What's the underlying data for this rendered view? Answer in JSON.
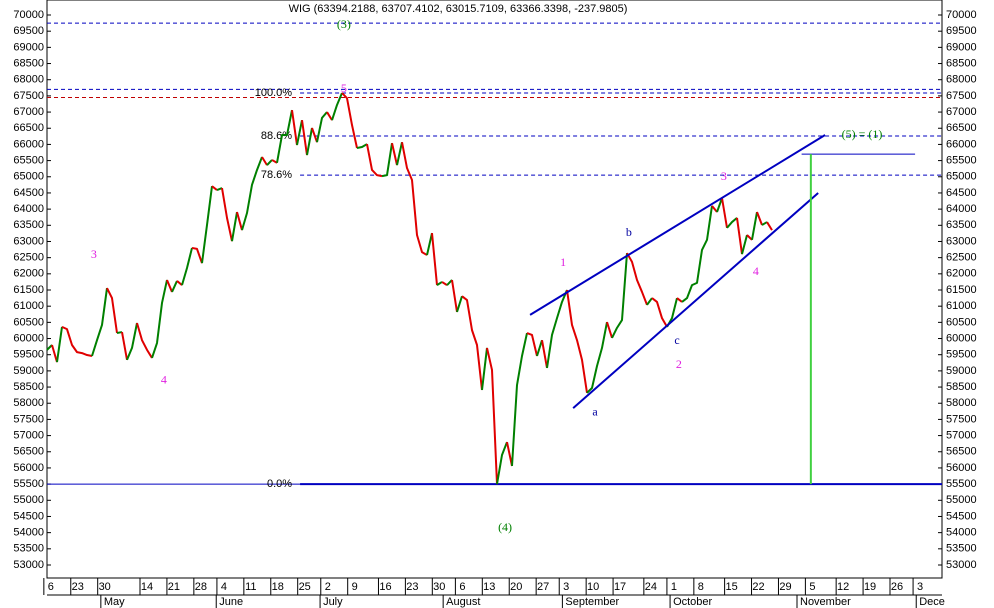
{
  "chart_data": {
    "type": "line",
    "title": "WIG (63394.2188, 63707.4102, 63015.7109, 63366.3398, -237.9805)",
    "x": [
      17,
      18.3,
      19.6,
      20.9,
      22.2,
      23.5,
      24.8,
      26.1,
      27.4,
      28.7,
      30,
      31.3,
      32.6,
      33.9,
      35.2,
      36.5,
      37.8,
      39.1,
      40.4,
      41.7,
      43,
      44.3,
      45.6,
      46.9,
      48.2,
      49.5,
      50.8,
      52.1,
      53.4,
      54.7,
      56,
      57.3,
      58.6,
      59.9,
      61.2,
      62.5,
      63.8,
      65.1,
      66.4,
      67.7,
      69,
      70.3,
      71.6,
      72.9,
      74.2,
      75.5,
      76.8,
      78.1,
      79.4,
      80.7,
      82,
      83.3,
      84.6,
      85.9,
      87.2,
      88.5,
      89.8,
      91.1,
      92.4,
      93.7,
      95,
      96.3,
      97.6,
      98.9,
      100.2,
      101.5,
      102.8,
      104.1,
      105.4,
      106.7,
      108,
      109.3,
      110.6,
      111.9,
      113.2,
      114.5,
      115.8,
      117.1,
      118.4,
      119.7,
      121,
      122.3,
      123.6,
      124.9,
      126.2,
      127.5,
      128.8,
      130.1,
      131.4,
      132.7,
      134,
      135.3,
      136.6,
      137.9,
      139.2,
      140.5,
      141.8,
      143.1,
      144.4,
      145.7,
      147,
      148.3,
      149.6,
      150.9,
      152.2,
      153.5,
      154.8,
      156.1,
      157.4,
      158.7,
      160,
      161.3,
      162.6,
      163.9,
      165.2,
      166.5,
      167.8,
      169.1,
      170.4,
      171.7,
      173,
      174.3,
      175.6,
      176.9,
      178.2,
      179.5,
      180.8,
      182.1,
      183.4,
      184.7,
      186,
      187.3,
      188.6,
      189.9,
      191.2,
      192.5,
      193.8,
      195.1,
      196.4,
      197.7,
      199,
      200.3,
      201.6,
      202.9,
      204.2,
      205.5
    ],
    "series": [
      {
        "up_color": "#008000",
        "down_color": "#e00000",
        "values": [
          59650,
          59800,
          59270,
          60360,
          60290,
          59800,
          59580,
          59550,
          59490,
          59460,
          59950,
          60420,
          61560,
          61250,
          60170,
          60200,
          59340,
          59710,
          60480,
          59950,
          59650,
          59400,
          59860,
          61100,
          61810,
          61440,
          61780,
          61650,
          62180,
          62800,
          62770,
          62330,
          63510,
          64710,
          64590,
          64650,
          63730,
          63010,
          63910,
          63350,
          63880,
          64750,
          65210,
          65610,
          65360,
          65520,
          65430,
          66290,
          66290,
          67060,
          65980,
          66750,
          65670,
          66510,
          66070,
          66820,
          67000,
          66750,
          67220,
          67590,
          67430,
          66600,
          65890,
          65920,
          66010,
          65210,
          65050,
          65020,
          65050,
          66040,
          65360,
          66070,
          65270,
          64900,
          63200,
          62670,
          62580,
          63260,
          61650,
          61750,
          61650,
          61810,
          60820,
          61310,
          61190,
          60260,
          59800,
          58410,
          59710,
          59030,
          55500,
          56400,
          56800,
          56060,
          58560,
          59460,
          60170,
          60110,
          59460,
          59950,
          59090,
          60110,
          60630,
          61130,
          61500,
          60420,
          59950,
          59340,
          58320,
          58470,
          59150,
          59710,
          60510,
          60020,
          60330,
          60570,
          62640,
          62370,
          61810,
          61440,
          61040,
          61250,
          61130,
          60630,
          60360,
          60630,
          61250,
          61130,
          61250,
          61650,
          61720,
          62740,
          63050,
          64100,
          63910,
          64340,
          63420,
          63600,
          63730,
          62610,
          63200,
          63050,
          63910,
          63510,
          63600,
          63350
        ]
      }
    ],
    "xlim": [
      17,
      249.7
    ],
    "ylim": [
      52598,
      70464
    ],
    "yticks": [
      53000,
      53500,
      54000,
      54500,
      55000,
      55500,
      56000,
      56500,
      57000,
      57500,
      58000,
      58500,
      59000,
      59500,
      60000,
      60500,
      61000,
      61500,
      62000,
      62500,
      63000,
      63500,
      64000,
      64500,
      65000,
      65500,
      66000,
      66500,
      67000,
      67500,
      68000,
      68500,
      69000,
      69500,
      70000
    ],
    "xticks": [
      {
        "value": 18,
        "label": "6"
      },
      {
        "value": 25,
        "label": "23"
      },
      {
        "value": 32,
        "label": "30"
      },
      {
        "value": 43,
        "label": "14"
      },
      {
        "value": 50,
        "label": "21"
      },
      {
        "value": 57,
        "label": "28"
      },
      {
        "value": 63,
        "label": "4"
      },
      {
        "value": 70,
        "label": "11"
      },
      {
        "value": 77,
        "label": "18"
      },
      {
        "value": 84,
        "label": "25"
      },
      {
        "value": 90,
        "label": "2"
      },
      {
        "value": 97,
        "label": "9"
      },
      {
        "value": 105,
        "label": "16"
      },
      {
        "value": 112,
        "label": "23"
      },
      {
        "value": 119,
        "label": "30"
      },
      {
        "value": 125,
        "label": "6"
      },
      {
        "value": 132,
        "label": "13"
      },
      {
        "value": 139,
        "label": "20"
      },
      {
        "value": 146,
        "label": "27"
      },
      {
        "value": 152,
        "label": "3"
      },
      {
        "value": 159,
        "label": "10"
      },
      {
        "value": 166,
        "label": "17"
      },
      {
        "value": 174,
        "label": "24"
      },
      {
        "value": 180,
        "label": "1"
      },
      {
        "value": 187,
        "label": "8"
      },
      {
        "value": 195,
        "label": "15"
      },
      {
        "value": 202,
        "label": "22"
      },
      {
        "value": 209,
        "label": "29"
      },
      {
        "value": 216,
        "label": "5"
      },
      {
        "value": 224,
        "label": "12"
      },
      {
        "value": 231,
        "label": "19"
      },
      {
        "value": 238,
        "label": "26"
      },
      {
        "value": 244,
        "label": "3"
      }
    ],
    "months": [
      {
        "value": 31,
        "label": "May"
      },
      {
        "value": 61,
        "label": "June"
      },
      {
        "value": 88,
        "label": "July"
      },
      {
        "value": 120,
        "label": "August"
      },
      {
        "value": 151,
        "label": "September"
      },
      {
        "value": 179,
        "label": "October"
      },
      {
        "value": 212,
        "label": "November"
      },
      {
        "value": 243,
        "label": "Dece"
      }
    ],
    "hlines": [
      {
        "value": 69750,
        "color": "#0000c0",
        "style": "dashed"
      },
      {
        "value": 67700,
        "color": "#0000c0",
        "style": "dashed"
      },
      {
        "value": 67450,
        "color": "#c00000",
        "style": "dashed"
      },
      {
        "value": 55500,
        "color": "#0000c0",
        "style": "solid"
      }
    ],
    "fib_color": "#0000c0",
    "fib_x_start": 82.8,
    "fib_levels": [
      {
        "value": 67590,
        "label": "100.0%",
        "style": "dashed"
      },
      {
        "value": 66260,
        "label": "88.6%",
        "style": "dashed"
      },
      {
        "value": 65050,
        "label": "78.6%",
        "style": "dashed"
      },
      {
        "value": 55500,
        "label": "0.0%",
        "style": "solid"
      }
    ],
    "lines": [
      {
        "x": [
          142.6,
          219.3
        ],
        "values": [
          60730,
          66290
        ],
        "color": "#0000c0",
        "width": 2
      },
      {
        "x": [
          153.8,
          217.5
        ],
        "values": [
          57850,
          64500
        ],
        "color": "#0000c0",
        "width": 2
      },
      {
        "x": [
          213.2,
          242.7
        ],
        "values": [
          65700,
          65700
        ],
        "color": "#0000c0",
        "width": 1
      },
      {
        "x": [
          215.6,
          215.6
        ],
        "values": [
          65700,
          55500
        ],
        "color": "#40d040",
        "width": 2
      }
    ],
    "wave_labels": [
      {
        "text": "(3)",
        "x": 94.2,
        "y": 69690,
        "color": "#008000"
      },
      {
        "text": "5",
        "x": 94.2,
        "y": 67700,
        "color": "#e020e0"
      },
      {
        "text": "3",
        "x": 29.2,
        "y": 62580,
        "color": "#e020e0"
      },
      {
        "text": "4",
        "x": 47.4,
        "y": 58690,
        "color": "#e020e0"
      },
      {
        "text": "(4)",
        "x": 136.1,
        "y": 54140,
        "color": "#008000"
      },
      {
        "text": "1",
        "x": 151.2,
        "y": 62330,
        "color": "#e020e0"
      },
      {
        "text": "a",
        "x": 159.5,
        "y": 57700,
        "color": "#0000a0"
      },
      {
        "text": "b",
        "x": 168.3,
        "y": 63260,
        "color": "#0000a0"
      },
      {
        "text": "c",
        "x": 180.8,
        "y": 59920,
        "color": "#0000a0"
      },
      {
        "text": "2",
        "x": 181.3,
        "y": 59180,
        "color": "#e020e0"
      },
      {
        "text": "3",
        "x": 193,
        "y": 64990,
        "color": "#e020e0"
      },
      {
        "text": "4",
        "x": 201.3,
        "y": 62050,
        "color": "#e020e0"
      },
      {
        "text": "(5) = (1)",
        "x": 228.9,
        "y": 66290,
        "color": "#008000"
      }
    ]
  }
}
